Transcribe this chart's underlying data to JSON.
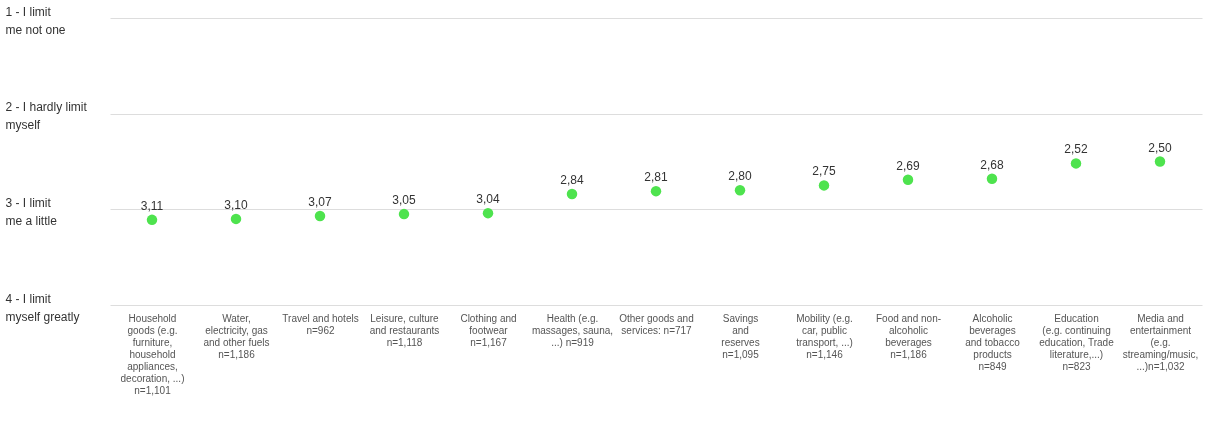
{
  "chart_data": {
    "type": "scatter",
    "categories": [
      "Household\ngoods (e.g.\nfurniture,\nhousehold\nappliances,\ndecoration, ...)\nn=1,101",
      "Water,\nelectricity, gas\nand other fuels\nn=1,186",
      "Travel and hotels\nn=962",
      "Leisure, culture\nand restaurants\nn=1,118",
      "Clothing and\nfootwear\nn=1,167",
      "Health (e.g.\nmassages, sauna,\n...) n=919",
      "Other goods and\nservices: n=717",
      "Savings\nand\nreserves\nn=1,095",
      "Mobility (e.g.\ncar, public\ntransport, ...)\nn=1,146",
      "Food and non-\nalcoholic\nbeverages\nn=1,186",
      "Alcoholic\nbeverages\nand tobacco\nproducts\nn=849",
      "Education\n(e.g. continuing\neducation, Trade\nliterature,...)\nn=823",
      "Media and\nentertainment\n(e.g.\nstreaming/music,\n...)n=1,032"
    ],
    "series": [
      {
        "color": "#4ee34e",
        "values": [
          3.11,
          3.1,
          3.07,
          3.05,
          3.04,
          2.84,
          2.81,
          2.8,
          2.75,
          2.69,
          2.68,
          2.52,
          2.5
        ],
        "value_labels": [
          "3,11",
          "3,10",
          "3,07",
          "3,05",
          "3,04",
          "2,84",
          "2,81",
          "2,80",
          "2,75",
          "2,69",
          "2,68",
          "2,52",
          "2,50"
        ]
      }
    ],
    "ylim": [
      4,
      1
    ],
    "yticks": [
      {
        "value": 1,
        "label": "1 - I limit\nme not one"
      },
      {
        "value": 2,
        "label": "2 - I hardly limit\nmyself"
      },
      {
        "value": 3,
        "label": "3 - I limit\nme a little"
      },
      {
        "value": 4,
        "label": "4 - I limit\nmyself greatly"
      }
    ],
    "grid": "y",
    "marker": "circle"
  }
}
